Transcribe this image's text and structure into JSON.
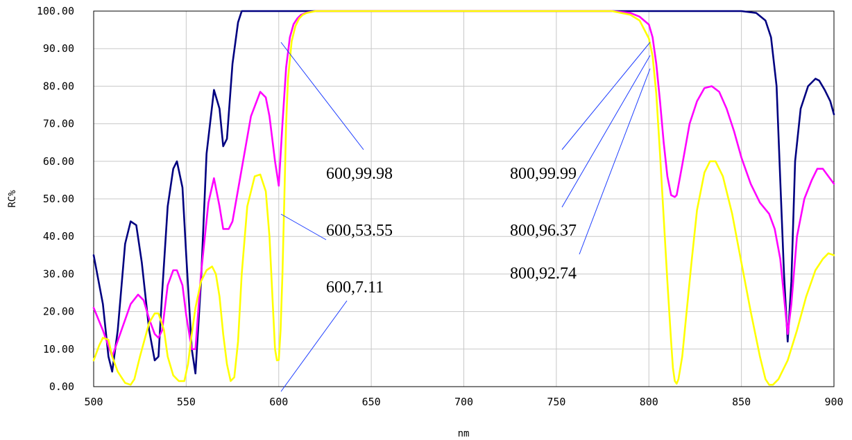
{
  "chart_data": {
    "type": "line",
    "title": "",
    "xlabel": "nm",
    "ylabel": "RC%",
    "xlim": [
      500,
      900
    ],
    "ylim": [
      0,
      100
    ],
    "xticks": [
      "500",
      "550",
      "600",
      "650",
      "700",
      "750",
      "800",
      "850",
      "900"
    ],
    "yticks": [
      "0.00",
      "10.00",
      "20.00",
      "30.00",
      "40.00",
      "50.00",
      "60.00",
      "70.00",
      "80.00",
      "90.00",
      "100.00"
    ],
    "grid": true,
    "series": [
      {
        "color": "#000080",
        "x": [
          500,
          505,
          508,
          510,
          513,
          517,
          520,
          523,
          526,
          530,
          533,
          535,
          537,
          540,
          543,
          545,
          548,
          550,
          553,
          555,
          558,
          561,
          565,
          568,
          570,
          572,
          575,
          578,
          580,
          585,
          590,
          600,
          700,
          800,
          840,
          850,
          858,
          863,
          866,
          869,
          871,
          873,
          875,
          877,
          879,
          882,
          886,
          890,
          892,
          895,
          898,
          900
        ],
        "y": [
          35,
          22,
          8,
          4,
          15,
          38,
          44,
          43,
          33,
          15,
          7,
          8,
          25,
          48,
          58,
          60,
          53,
          35,
          10,
          3.5,
          28,
          62,
          79,
          74,
          64,
          66,
          86,
          97,
          100,
          100,
          100,
          100,
          100,
          100,
          100,
          100,
          99.5,
          97.5,
          93,
          80,
          55,
          30,
          12,
          28,
          60,
          74,
          80,
          82,
          81.5,
          79,
          76,
          72.5
        ]
      },
      {
        "color": "#ff00ff",
        "x": [
          500,
          505,
          510,
          515,
          520,
          524,
          527,
          530,
          533,
          535,
          537,
          540,
          543,
          545,
          548,
          550,
          553,
          555,
          558,
          562,
          565,
          568,
          570,
          573,
          575,
          580,
          585,
          590,
          593,
          595,
          598,
          600,
          602,
          604,
          606,
          608,
          610,
          612,
          615,
          620,
          625,
          630,
          700,
          780,
          790,
          795,
          800,
          802,
          804,
          806,
          808,
          810,
          812,
          814,
          815,
          818,
          822,
          826,
          830,
          834,
          838,
          842,
          846,
          850,
          855,
          860,
          865,
          868,
          871,
          873,
          875,
          877,
          880,
          884,
          888,
          891,
          894,
          897,
          900
        ],
        "y": [
          21,
          15,
          8,
          15,
          22,
          24.5,
          23,
          18,
          14,
          13,
          15,
          27,
          31,
          31,
          27,
          19,
          10,
          10,
          30,
          49,
          55.5,
          48,
          42,
          42,
          44,
          58,
          72,
          78.5,
          77,
          72,
          60,
          53.5,
          70,
          85,
          93,
          96.5,
          98,
          99,
          99.6,
          100,
          100,
          100,
          100,
          100,
          99.5,
          98.5,
          96.4,
          93,
          86,
          76,
          65,
          56,
          51,
          50.5,
          51,
          59,
          70,
          76,
          79.5,
          80,
          78.5,
          74,
          68,
          61,
          54,
          49,
          46,
          42,
          34,
          24,
          14,
          22,
          40,
          50,
          55,
          58,
          58,
          56,
          54
        ]
      },
      {
        "color": "#ffff00",
        "x": [
          500,
          503,
          505,
          508,
          510,
          513,
          517,
          520,
          522,
          525,
          530,
          533,
          535,
          538,
          540,
          543,
          546,
          549,
          551,
          553,
          555,
          558,
          561,
          564,
          566,
          568,
          570,
          572,
          574,
          576,
          578,
          580,
          583,
          587,
          590,
          593,
          595,
          597,
          598,
          599,
          600,
          601,
          602,
          603,
          604,
          605,
          607,
          609,
          611,
          613,
          615,
          620,
          625,
          630,
          700,
          780,
          790,
          795,
          800,
          802,
          804,
          806,
          808,
          810,
          812,
          813,
          814,
          815,
          816,
          818,
          820,
          823,
          826,
          830,
          833,
          836,
          840,
          845,
          850,
          855,
          860,
          863,
          865,
          867,
          870,
          875,
          880,
          885,
          890,
          894,
          897,
          900
        ],
        "y": [
          7,
          11,
          13,
          12.5,
          8,
          4,
          1,
          0.5,
          2,
          8,
          17,
          19.5,
          19.5,
          15,
          8,
          3,
          1.5,
          1.5,
          6,
          14,
          21,
          28,
          31,
          32,
          30,
          24,
          14,
          6,
          1.5,
          2.5,
          12,
          30,
          48,
          56,
          56.5,
          52,
          40,
          20,
          10,
          7,
          7.1,
          15,
          30,
          50,
          70,
          82,
          92,
          96,
          98,
          99,
          99.5,
          100,
          100,
          100,
          100,
          100,
          99,
          97.5,
          92.7,
          88,
          78,
          62,
          45,
          28,
          12,
          5,
          1.5,
          0.8,
          2,
          8,
          18,
          33,
          47,
          57,
          60,
          60,
          56,
          46,
          33,
          20,
          8,
          2,
          0.5,
          0.5,
          2,
          7,
          15,
          24,
          31,
          34,
          35.5,
          35
        ]
      }
    ],
    "annotations": [
      {
        "text": "600,99.98"
      },
      {
        "text": "600,53.55"
      },
      {
        "text": "600,7.11"
      },
      {
        "text": "800,99.99"
      },
      {
        "text": "800,96.37"
      },
      {
        "text": "800,92.74"
      }
    ]
  }
}
